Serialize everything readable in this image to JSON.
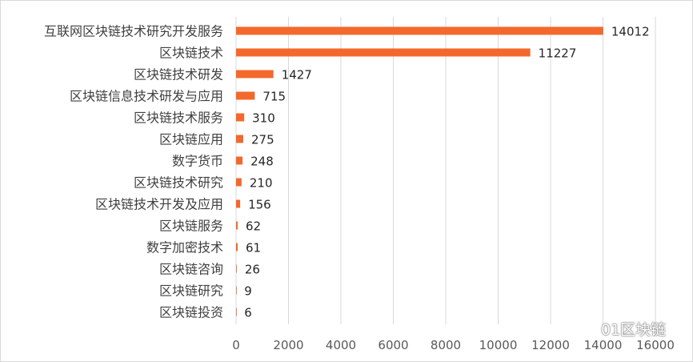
{
  "chart_data": {
    "type": "bar",
    "orientation": "horizontal",
    "title": "",
    "xlabel": "",
    "ylabel": "",
    "categories": [
      "互联网区块链技术研究开发服务",
      "区块链技术",
      "区块链技术研发",
      "区块链信息技术研发与应用",
      "区块链技术服务",
      "区块链应用",
      "数字货币",
      "区块链技术研究",
      "区块链技术开发及应用",
      "区块链服务",
      "数字加密技术",
      "区块链咨询",
      "区块链研究",
      "区块链投资"
    ],
    "values": [
      14012,
      11227,
      1427,
      715,
      310,
      275,
      248,
      210,
      156,
      62,
      61,
      26,
      9,
      6
    ],
    "value_labels": [
      "14012",
      "11227",
      "1427",
      "715",
      "310",
      "275",
      "248",
      "210",
      "156",
      "62",
      "61",
      "26",
      "9",
      "6"
    ],
    "xlim": [
      0,
      16000
    ],
    "x_ticks": [
      "0",
      "2000",
      "4000",
      "6000",
      "8000",
      "10000",
      "12000",
      "14000",
      "16000"
    ],
    "grid": "vertical",
    "bar_color": "#f4682c"
  },
  "watermark": {
    "text": "01区块链",
    "icon": "wechat-icon"
  }
}
